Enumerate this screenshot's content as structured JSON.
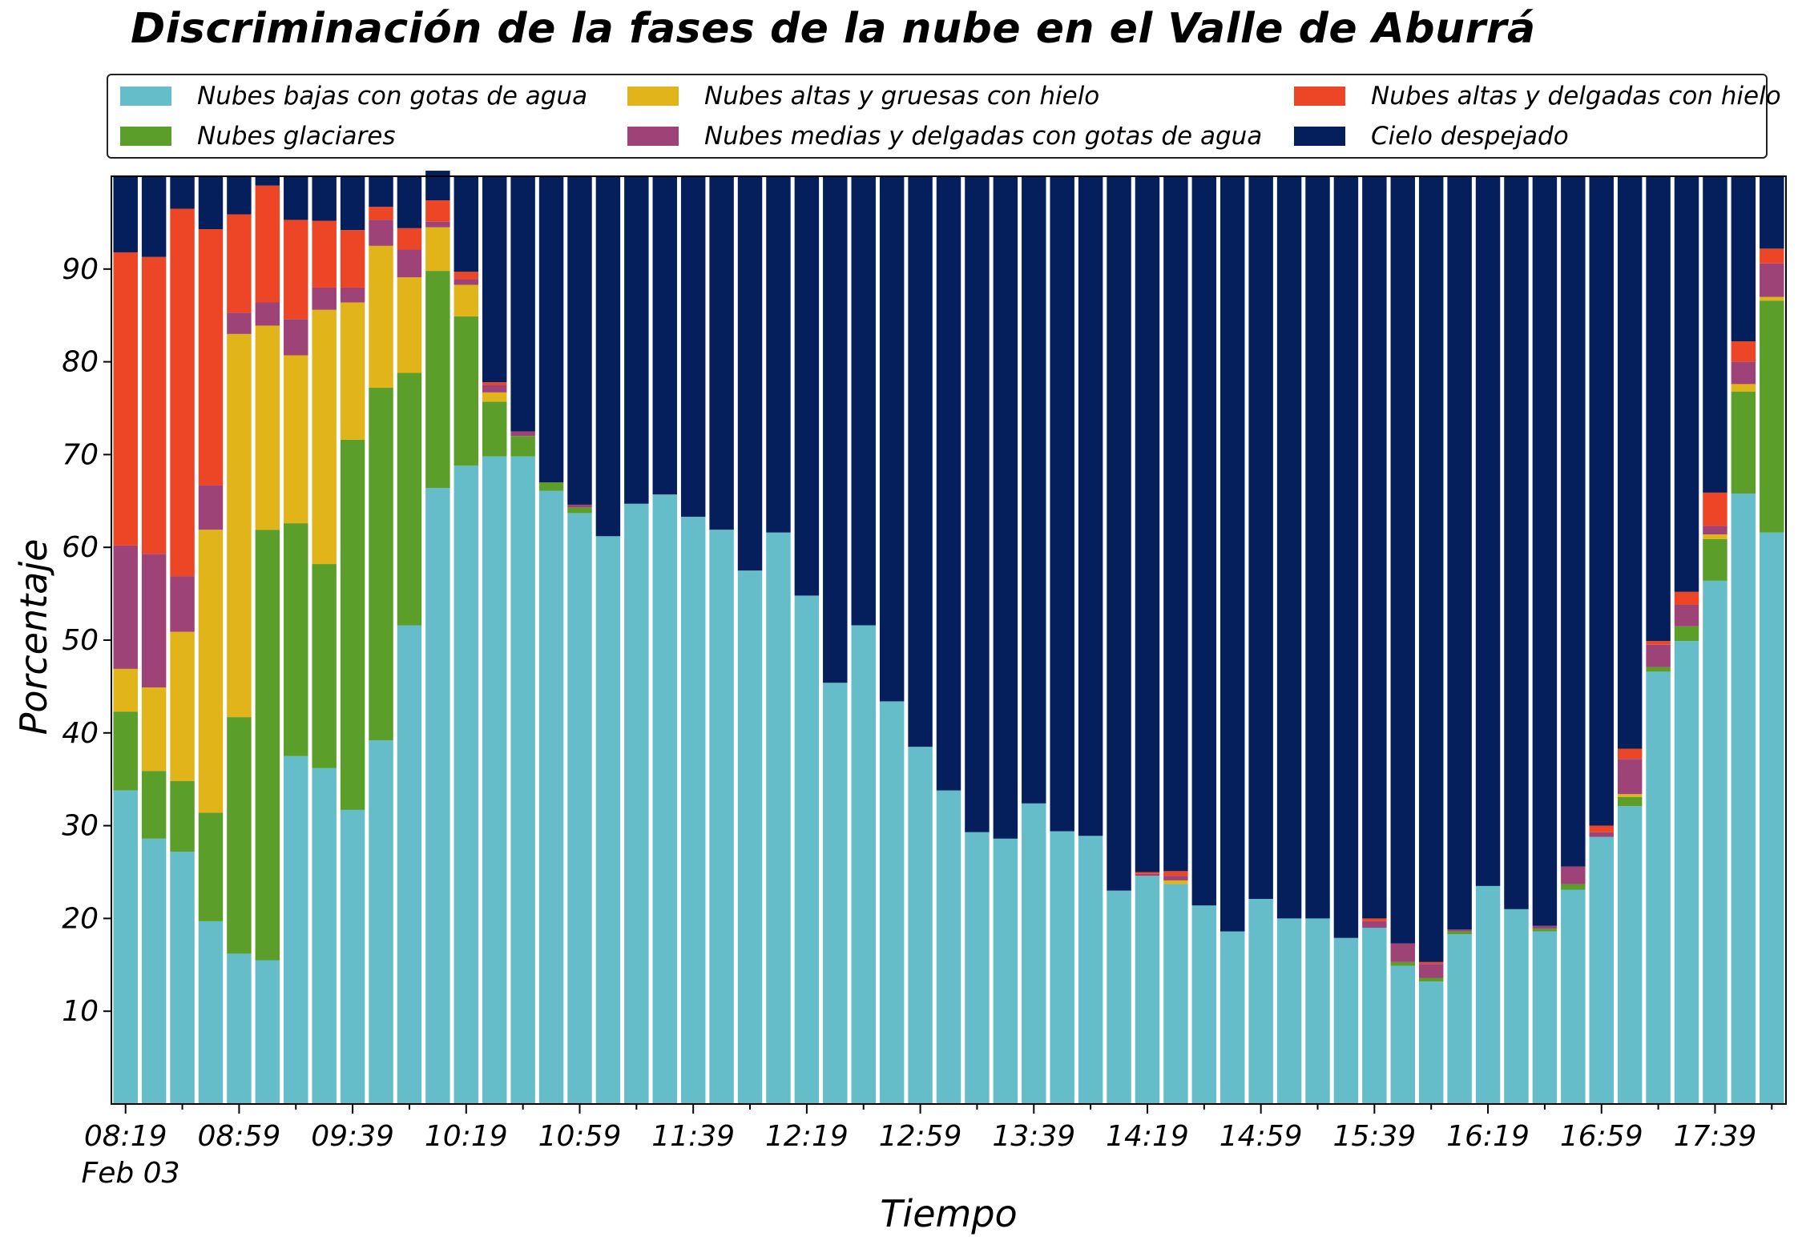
{
  "chart_data": {
    "type": "bar",
    "stacked": true,
    "title": "Discriminación de la fases de la nube en el Valle de Aburrá",
    "xlabel": "Tiempo",
    "ylabel": "Porcentaje",
    "ylim": [
      0,
      100
    ],
    "yticks": [
      10,
      20,
      30,
      40,
      50,
      60,
      70,
      80,
      90
    ],
    "xticks": [
      "08:19",
      "08:59",
      "09:39",
      "10:19",
      "10:59",
      "11:39",
      "12:19",
      "12:59",
      "13:39",
      "14:19",
      "14:59",
      "15:39",
      "16:19",
      "16:59",
      "17:39"
    ],
    "date_label": "Feb 03",
    "grid": false,
    "legend_position": "top",
    "categories": [
      "08:19",
      "08:29",
      "08:39",
      "08:49",
      "08:59",
      "09:09",
      "09:19",
      "09:29",
      "09:39",
      "09:49",
      "09:59",
      "10:09",
      "10:19",
      "10:29",
      "10:39",
      "10:49",
      "10:59",
      "11:09",
      "11:19",
      "11:29",
      "11:39",
      "11:49",
      "11:59",
      "12:09",
      "12:19",
      "12:29",
      "12:39",
      "12:49",
      "12:59",
      "13:09",
      "13:19",
      "13:29",
      "13:39",
      "13:49",
      "13:59",
      "14:09",
      "14:19",
      "14:29",
      "14:39",
      "14:49",
      "14:59",
      "15:09",
      "15:19",
      "15:29",
      "15:39",
      "15:49",
      "15:59",
      "16:09",
      "16:19",
      "16:29",
      "16:39",
      "16:49",
      "16:59",
      "17:09",
      "17:19",
      "17:29",
      "17:39",
      "17:49",
      "17:59"
    ],
    "series": [
      {
        "name": "Nubes bajas con gotas de agua",
        "color": "#64bdc9",
        "values": [
          33.8,
          28.6,
          27.2,
          19.7,
          16.2,
          15.5,
          37.5,
          36.2,
          31.7,
          39.2,
          51.6,
          66.4,
          68.8,
          69.8,
          69.8,
          66.1,
          63.7,
          61.2,
          64.7,
          65.7,
          63.3,
          61.9,
          57.5,
          61.6,
          54.8,
          45.4,
          51.6,
          43.4,
          38.5,
          33.8,
          29.3,
          28.6,
          32.4,
          29.4,
          28.9,
          23.0,
          24.6,
          23.7,
          21.4,
          18.6,
          22.1,
          20.0,
          20.0,
          17.9,
          19.0,
          14.9,
          13.2,
          18.3,
          23.5,
          21.0,
          18.6,
          23.1,
          28.8,
          32.1,
          46.6,
          49.9,
          56.4,
          65.8,
          61.6
        ]
      },
      {
        "name": "Nubes glaciares",
        "color": "#5b9e2a",
        "values": [
          8.5,
          7.3,
          7.6,
          11.7,
          25.5,
          46.4,
          25.1,
          22.0,
          39.9,
          38.0,
          27.2,
          23.4,
          16.1,
          5.9,
          2.2,
          0.9,
          0.6,
          0,
          0,
          0,
          0,
          0,
          0,
          0,
          0,
          0,
          0,
          0,
          0,
          0,
          0,
          0,
          0,
          0,
          0,
          0,
          0,
          0,
          0,
          0,
          0,
          0,
          0,
          0,
          0,
          0.4,
          0.4,
          0.3,
          0,
          0,
          0.3,
          0.6,
          0,
          1.0,
          0.5,
          1.6,
          4.5,
          11.0,
          25.0
        ]
      },
      {
        "name": "Nubes altas y gruesas con hielo",
        "color": "#e1b41a",
        "values": [
          4.6,
          9.0,
          16.1,
          30.5,
          41.3,
          22.0,
          18.1,
          27.4,
          14.8,
          15.3,
          10.3,
          4.7,
          3.4,
          1.0,
          0,
          0,
          0,
          0,
          0,
          0,
          0,
          0,
          0,
          0,
          0,
          0,
          0,
          0,
          0,
          0,
          0,
          0,
          0,
          0,
          0,
          0,
          0,
          0.4,
          0,
          0,
          0,
          0,
          0,
          0,
          0,
          0,
          0,
          0,
          0,
          0,
          0,
          0,
          0,
          0.3,
          0,
          0,
          0.5,
          0.8,
          0.4
        ]
      },
      {
        "name": "Nubes medias y delgadas con gotas de agua",
        "color": "#9e4378",
        "values": [
          13.3,
          14.4,
          6.0,
          4.8,
          2.3,
          2.5,
          3.9,
          2.4,
          1.6,
          2.8,
          3.0,
          0.6,
          0.6,
          0.8,
          0.5,
          0,
          0.3,
          0,
          0,
          0,
          0,
          0,
          0,
          0,
          0,
          0,
          0,
          0,
          0,
          0,
          0,
          0,
          0,
          0,
          0,
          0,
          0.2,
          0.5,
          0,
          0,
          0,
          0,
          0,
          0,
          0.7,
          2.0,
          1.5,
          0.2,
          0,
          0,
          0.3,
          1.9,
          0.5,
          3.8,
          2.4,
          2.3,
          0.9,
          2.4,
          3.6
        ]
      },
      {
        "name": "Nubes altas y delgadas con hielo",
        "color": "#ed4626",
        "values": [
          31.6,
          32.0,
          39.6,
          27.6,
          10.6,
          12.6,
          10.7,
          7.2,
          6.2,
          1.4,
          2.3,
          2.3,
          0.8,
          0.3,
          0,
          0,
          0,
          0,
          0,
          0,
          0,
          0,
          0,
          0,
          0,
          0,
          0,
          0,
          0,
          0,
          0,
          0,
          0,
          0,
          0,
          0,
          0.2,
          0.5,
          0,
          0,
          0,
          0,
          0,
          0,
          0.3,
          0,
          0.2,
          0,
          0,
          0,
          0,
          0,
          0.7,
          1.1,
          0.4,
          1.4,
          3.6,
          2.2,
          1.6
        ]
      },
      {
        "name": "Cielo despejado",
        "color": "#051f5d",
        "values": [
          8.2,
          8.7,
          3.5,
          5.7,
          4.1,
          1.0,
          4.7,
          4.8,
          5.8,
          3.3,
          5.6,
          3.2,
          10.3,
          22.2,
          27.5,
          33.0,
          35.4,
          38.8,
          35.3,
          34.3,
          36.7,
          38.1,
          42.5,
          38.4,
          45.2,
          54.6,
          48.4,
          56.6,
          61.5,
          66.2,
          70.7,
          71.4,
          67.6,
          70.6,
          71.1,
          77.0,
          75.0,
          74.9,
          78.6,
          81.4,
          77.9,
          80.0,
          80.0,
          82.1,
          80.0,
          82.7,
          84.7,
          81.2,
          76.5,
          79.0,
          80.8,
          74.4,
          70.0,
          61.7,
          50.1,
          44.8,
          34.1,
          17.8,
          7.8
        ]
      }
    ]
  }
}
